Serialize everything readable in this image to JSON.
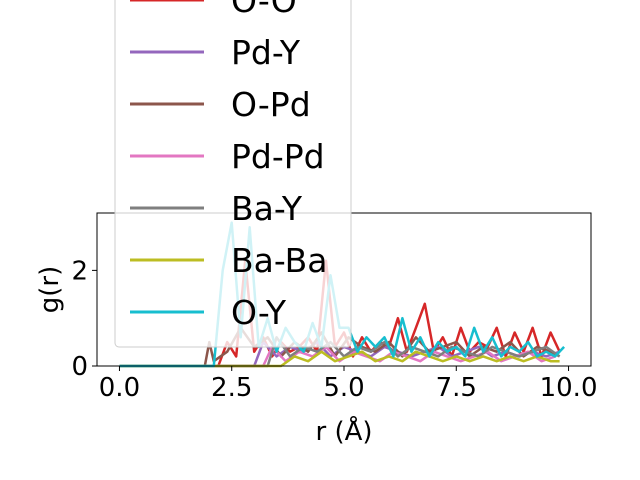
{
  "chart_data": {
    "type": "line",
    "xlabel": "r (Å)",
    "ylabel": "g(r)",
    "xlim": [
      -0.5,
      10.5
    ],
    "ylim": [
      0,
      3.2
    ],
    "xticks": [
      0.0,
      2.5,
      5.0,
      7.5,
      10.0
    ],
    "xtick_labels": [
      "0.0",
      "2.5",
      "5.0",
      "7.5",
      "10.0"
    ],
    "yticks": [
      0,
      2
    ],
    "ytick_labels": [
      "0",
      "2"
    ],
    "grid": false,
    "legend_placement": "upper-left (overflowing above plot)",
    "series": [
      {
        "name": "O-O",
        "color": "#d62728",
        "x": [
          0,
          1.9,
          2.0,
          2.2,
          2.4,
          2.6,
          2.8,
          3.0,
          3.2,
          3.4,
          3.6,
          3.8,
          4.0,
          4.2,
          4.4,
          4.6,
          4.8,
          5.0,
          5.2,
          5.4,
          5.6,
          5.8,
          6.0,
          6.2,
          6.4,
          6.6,
          6.8,
          7.0,
          7.2,
          7.4,
          7.6,
          7.8,
          8.0,
          8.2,
          8.4,
          8.6,
          8.8,
          9.0,
          9.2,
          9.4,
          9.6,
          9.8
        ],
        "y": [
          0,
          0,
          0,
          0,
          0.5,
          0.2,
          2.2,
          0.3,
          0.6,
          0.2,
          0.5,
          0.3,
          0.4,
          0.6,
          0.3,
          2.2,
          0.4,
          0.7,
          0.2,
          0.6,
          0.3,
          0.5,
          0.4,
          1.0,
          0.3,
          0.8,
          1.3,
          0.3,
          0.6,
          0.2,
          0.8,
          0.3,
          0.5,
          0.4,
          0.8,
          0.2,
          0.7,
          0.3,
          0.8,
          0.2,
          0.7,
          0.3
        ]
      },
      {
        "name": "Pd-Y",
        "color": "#9467bd",
        "x": [
          0,
          3.0,
          3.2,
          3.5,
          3.8,
          4.1,
          4.4,
          4.7,
          5.0,
          5.3,
          5.6,
          5.9,
          6.2,
          6.5,
          6.8,
          7.1,
          7.4,
          7.7,
          8.0,
          8.3,
          8.6,
          8.9,
          9.2,
          9.5,
          9.8
        ],
        "y": [
          0,
          0,
          0.5,
          0.2,
          0.4,
          0.3,
          0.5,
          0.2,
          0.4,
          0.3,
          0.2,
          0.4,
          0.3,
          0.2,
          0.3,
          0.4,
          0.2,
          0.3,
          0.4,
          0.2,
          0.3,
          0.2,
          0.3,
          0.2,
          0.3
        ]
      },
      {
        "name": "O-Pd",
        "color": "#8c564b",
        "x": [
          0,
          1.9,
          2.0,
          2.1,
          2.4,
          2.7,
          3.0,
          3.3,
          3.6,
          3.9,
          4.2,
          4.5,
          4.8,
          5.1,
          5.4,
          5.7,
          6.0,
          6.3,
          6.6,
          6.9,
          7.2,
          7.5,
          7.8,
          8.1,
          8.4,
          8.7,
          9.0,
          9.3,
          9.6,
          9.8
        ],
        "y": [
          0,
          0,
          0.5,
          0.1,
          0.3,
          0.8,
          0.4,
          0.6,
          0.2,
          0.5,
          0.3,
          0.7,
          0.2,
          0.6,
          0.4,
          0.3,
          0.5,
          0.2,
          0.6,
          0.3,
          0.4,
          0.5,
          0.2,
          0.4,
          0.3,
          0.5,
          0.2,
          0.4,
          0.3,
          0.2
        ]
      },
      {
        "name": "Pd-Pd",
        "color": "#e377c2",
        "x": [
          0,
          3.2,
          3.4,
          3.7,
          4.0,
          4.3,
          4.6,
          4.9,
          5.2,
          5.5,
          5.8,
          6.1,
          6.4,
          6.7,
          7.0,
          7.3,
          7.6,
          7.9,
          8.2,
          8.5,
          8.8,
          9.1,
          9.4,
          9.7
        ],
        "y": [
          0,
          0,
          0.4,
          0.1,
          0.3,
          0.2,
          0.4,
          0.1,
          0.3,
          0.2,
          0.1,
          0.3,
          0.2,
          0.1,
          0.3,
          0.2,
          0.1,
          0.2,
          0.3,
          0.1,
          0.2,
          0.3,
          0.1,
          0.2
        ]
      },
      {
        "name": "Ba-Y",
        "color": "#7f7f7f",
        "x": [
          0,
          3.3,
          3.5,
          3.8,
          4.1,
          4.4,
          4.7,
          5.0,
          5.3,
          5.6,
          5.9,
          6.2,
          6.5,
          6.8,
          7.1,
          7.4,
          7.7,
          8.0,
          8.3,
          8.6,
          8.9,
          9.2,
          9.5,
          9.8
        ],
        "y": [
          0,
          0,
          0.6,
          0.2,
          0.4,
          0.3,
          0.5,
          0.2,
          0.4,
          0.3,
          0.5,
          0.2,
          0.4,
          0.3,
          0.2,
          0.4,
          0.3,
          0.2,
          0.4,
          0.3,
          0.2,
          0.3,
          0.4,
          0.2
        ]
      },
      {
        "name": "Ba-Ba",
        "color": "#bcbd22",
        "x": [
          0,
          3.6,
          3.9,
          4.2,
          4.5,
          4.8,
          5.1,
          5.4,
          5.7,
          6.0,
          6.3,
          6.6,
          6.9,
          7.2,
          7.5,
          7.8,
          8.1,
          8.4,
          8.7,
          9.0,
          9.3,
          9.6,
          9.8
        ],
        "y": [
          0,
          0,
          0.2,
          0.1,
          0.3,
          0.1,
          0.2,
          0.3,
          0.1,
          0.2,
          0.1,
          0.3,
          0.2,
          0.1,
          0.2,
          0.1,
          0.2,
          0.1,
          0.2,
          0.1,
          0.2,
          0.1,
          0.1
        ]
      },
      {
        "name": "O-Y",
        "color": "#17becf",
        "x": [
          0,
          2.0,
          2.1,
          2.3,
          2.5,
          2.7,
          2.9,
          3.1,
          3.3,
          3.5,
          3.7,
          3.9,
          4.1,
          4.3,
          4.5,
          4.7,
          4.9,
          5.1,
          5.3,
          5.5,
          5.7,
          5.9,
          6.1,
          6.3,
          6.5,
          6.7,
          6.9,
          7.1,
          7.3,
          7.5,
          7.7,
          7.9,
          8.1,
          8.3,
          8.5,
          8.7,
          8.9,
          9.1,
          9.3,
          9.5,
          9.7,
          9.9
        ],
        "y": [
          0,
          0,
          0,
          2.0,
          3.0,
          0.6,
          2.9,
          0.4,
          1.0,
          0.3,
          0.8,
          0.5,
          0.3,
          0.9,
          0.4,
          1.9,
          0.8,
          0.8,
          0.3,
          0.6,
          0.4,
          0.6,
          0.2,
          1.0,
          0.3,
          0.6,
          0.2,
          0.5,
          0.3,
          0.4,
          0.2,
          0.8,
          0.3,
          0.6,
          0.2,
          0.4,
          0.3,
          0.5,
          0.2,
          0.3,
          0.2,
          0.4
        ]
      }
    ]
  }
}
